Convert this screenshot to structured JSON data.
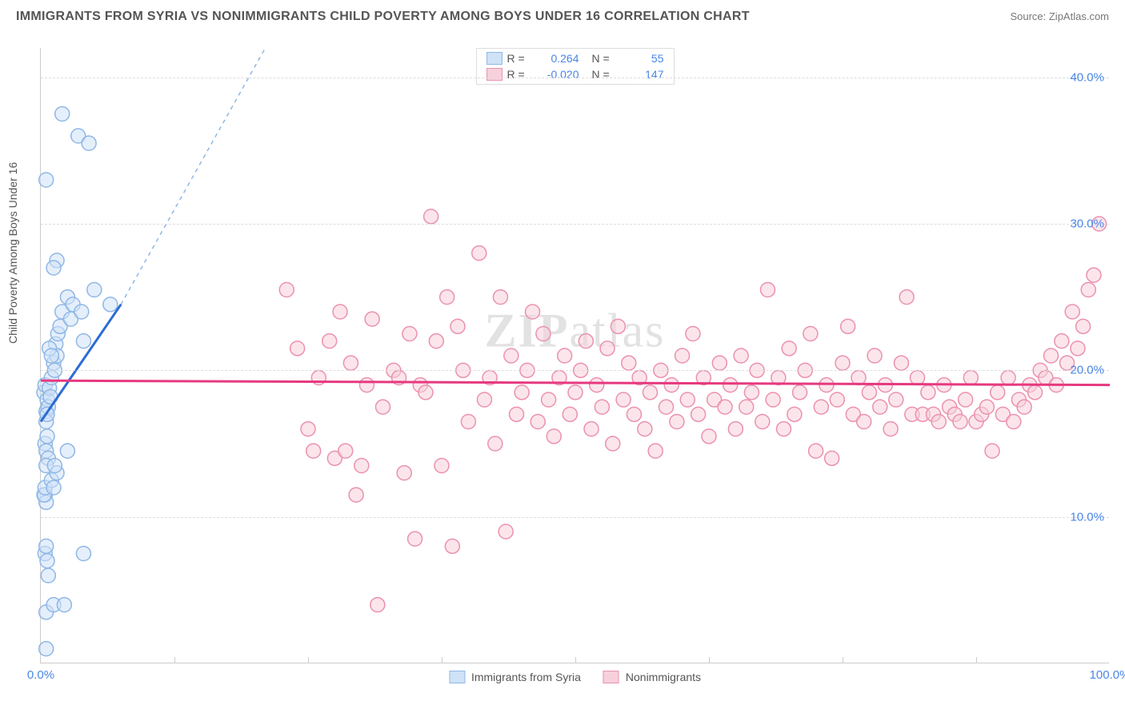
{
  "title": "IMMIGRANTS FROM SYRIA VS NONIMMIGRANTS CHILD POVERTY AMONG BOYS UNDER 16 CORRELATION CHART",
  "source_label": "Source: ZipAtlas.com",
  "ylabel": "Child Poverty Among Boys Under 16",
  "watermark": "ZIPatlas",
  "chart": {
    "type": "scatter",
    "xlim": [
      0,
      100
    ],
    "ylim": [
      0,
      42
    ],
    "x_ticks": [
      0,
      100
    ],
    "x_tick_labels": [
      "0.0%",
      "100.0%"
    ],
    "x_minor_ticks": [
      12.5,
      25,
      37.5,
      50,
      62.5,
      75,
      87.5
    ],
    "y_ticks": [
      10,
      20,
      30,
      40
    ],
    "y_tick_labels": [
      "10.0%",
      "20.0%",
      "30.0%",
      "40.0%"
    ],
    "background_color": "#ffffff",
    "grid_color": "#dddddd",
    "axis_color": "#cccccc",
    "marker_radius": 9,
    "marker_stroke_width": 1.5,
    "series": [
      {
        "name": "Immigrants from Syria",
        "fill": "#cfe2f7",
        "stroke": "#8fb7e6",
        "fill_opacity": 0.55,
        "R": "0.264",
        "N": "55",
        "trend": {
          "x1": 0,
          "y1": 16.5,
          "x2": 7.5,
          "y2": 24.5,
          "color": "#2b6cd4",
          "width": 3,
          "dash": "none"
        },
        "trend_ext": {
          "x1": 7.5,
          "y1": 24.5,
          "x2": 21,
          "y2": 42,
          "color": "#8fb7e6",
          "width": 1.5,
          "dash": "5,5"
        },
        "points": [
          [
            0.3,
            18.5
          ],
          [
            0.5,
            17.2
          ],
          [
            0.4,
            19.0
          ],
          [
            0.6,
            18.0
          ],
          [
            0.7,
            17.5
          ],
          [
            0.8,
            18.8
          ],
          [
            0.5,
            16.5
          ],
          [
            0.9,
            18.2
          ],
          [
            1.0,
            19.5
          ],
          [
            0.6,
            17.0
          ],
          [
            1.2,
            20.5
          ],
          [
            1.4,
            21.8
          ],
          [
            1.6,
            22.5
          ],
          [
            1.3,
            20.0
          ],
          [
            1.5,
            21.0
          ],
          [
            1.8,
            23.0
          ],
          [
            2.0,
            24.0
          ],
          [
            2.5,
            25.0
          ],
          [
            3.0,
            24.5
          ],
          [
            0.4,
            15.0
          ],
          [
            0.5,
            14.5
          ],
          [
            0.6,
            15.5
          ],
          [
            0.7,
            14.0
          ],
          [
            0.5,
            13.5
          ],
          [
            0.4,
            11.5
          ],
          [
            0.5,
            11.0
          ],
          [
            0.3,
            11.5
          ],
          [
            0.4,
            12.0
          ],
          [
            1.0,
            12.5
          ],
          [
            1.2,
            12.0
          ],
          [
            1.5,
            13.0
          ],
          [
            1.3,
            13.5
          ],
          [
            2.5,
            14.5
          ],
          [
            2.8,
            23.5
          ],
          [
            3.8,
            24.0
          ],
          [
            5.0,
            25.5
          ],
          [
            6.5,
            24.5
          ],
          [
            4.0,
            22.0
          ],
          [
            0.4,
            7.5
          ],
          [
            0.5,
            8.0
          ],
          [
            0.7,
            6.0
          ],
          [
            0.6,
            7.0
          ],
          [
            4.0,
            7.5
          ],
          [
            0.5,
            3.5
          ],
          [
            1.2,
            4.0
          ],
          [
            2.2,
            4.0
          ],
          [
            0.5,
            1.0
          ],
          [
            2.0,
            37.5
          ],
          [
            3.5,
            36.0
          ],
          [
            4.5,
            35.5
          ],
          [
            0.5,
            33.0
          ],
          [
            1.5,
            27.5
          ],
          [
            1.2,
            27.0
          ],
          [
            0.8,
            21.5
          ],
          [
            1.0,
            21.0
          ]
        ]
      },
      {
        "name": "Nonimmigrants",
        "fill": "#f8d0db",
        "stroke": "#eb91af",
        "fill_opacity": 0.55,
        "R": "-0.020",
        "N": "147",
        "trend": {
          "x1": 0,
          "y1": 19.3,
          "x2": 100,
          "y2": 19.0,
          "color": "#e6397f",
          "width": 3,
          "dash": "none"
        },
        "points": [
          [
            23,
            25.5
          ],
          [
            24,
            21.5
          ],
          [
            25,
            16.0
          ],
          [
            25.5,
            14.5
          ],
          [
            26,
            19.5
          ],
          [
            27,
            22.0
          ],
          [
            27.5,
            14.0
          ],
          [
            28,
            24.0
          ],
          [
            28.5,
            14.5
          ],
          [
            29,
            20.5
          ],
          [
            29.5,
            11.5
          ],
          [
            30,
            13.5
          ],
          [
            30.5,
            19.0
          ],
          [
            31,
            23.5
          ],
          [
            31.5,
            4.0
          ],
          [
            32,
            17.5
          ],
          [
            33,
            20.0
          ],
          [
            33.5,
            19.5
          ],
          [
            34,
            13.0
          ],
          [
            34.5,
            22.5
          ],
          [
            35,
            8.5
          ],
          [
            35.5,
            19.0
          ],
          [
            36,
            18.5
          ],
          [
            36.5,
            30.5
          ],
          [
            37,
            22.0
          ],
          [
            37.5,
            13.5
          ],
          [
            38,
            25.0
          ],
          [
            38.5,
            8.0
          ],
          [
            39,
            23.0
          ],
          [
            39.5,
            20.0
          ],
          [
            40,
            16.5
          ],
          [
            41,
            28.0
          ],
          [
            41.5,
            18.0
          ],
          [
            42,
            19.5
          ],
          [
            42.5,
            15.0
          ],
          [
            43,
            25.0
          ],
          [
            43.5,
            9.0
          ],
          [
            44,
            21.0
          ],
          [
            44.5,
            17.0
          ],
          [
            45,
            18.5
          ],
          [
            45.5,
            20.0
          ],
          [
            46,
            24.0
          ],
          [
            46.5,
            16.5
          ],
          [
            47,
            22.5
          ],
          [
            47.5,
            18.0
          ],
          [
            48,
            15.5
          ],
          [
            48.5,
            19.5
          ],
          [
            49,
            21.0
          ],
          [
            49.5,
            17.0
          ],
          [
            50,
            18.5
          ],
          [
            50.5,
            20.0
          ],
          [
            51,
            22.0
          ],
          [
            51.5,
            16.0
          ],
          [
            52,
            19.0
          ],
          [
            52.5,
            17.5
          ],
          [
            53,
            21.5
          ],
          [
            53.5,
            15.0
          ],
          [
            54,
            23.0
          ],
          [
            54.5,
            18.0
          ],
          [
            55,
            20.5
          ],
          [
            55.5,
            17.0
          ],
          [
            56,
            19.5
          ],
          [
            56.5,
            16.0
          ],
          [
            57,
            18.5
          ],
          [
            57.5,
            14.5
          ],
          [
            58,
            20.0
          ],
          [
            58.5,
            17.5
          ],
          [
            59,
            19.0
          ],
          [
            59.5,
            16.5
          ],
          [
            60,
            21.0
          ],
          [
            60.5,
            18.0
          ],
          [
            61,
            22.5
          ],
          [
            61.5,
            17.0
          ],
          [
            62,
            19.5
          ],
          [
            62.5,
            15.5
          ],
          [
            63,
            18.0
          ],
          [
            63.5,
            20.5
          ],
          [
            64,
            17.5
          ],
          [
            64.5,
            19.0
          ],
          [
            65,
            16.0
          ],
          [
            65.5,
            21.0
          ],
          [
            66,
            17.5
          ],
          [
            66.5,
            18.5
          ],
          [
            67,
            20.0
          ],
          [
            67.5,
            16.5
          ],
          [
            68,
            25.5
          ],
          [
            68.5,
            18.0
          ],
          [
            69,
            19.5
          ],
          [
            69.5,
            16.0
          ],
          [
            70,
            21.5
          ],
          [
            70.5,
            17.0
          ],
          [
            71,
            18.5
          ],
          [
            71.5,
            20.0
          ],
          [
            72,
            22.5
          ],
          [
            72.5,
            14.5
          ],
          [
            73,
            17.5
          ],
          [
            73.5,
            19.0
          ],
          [
            74,
            14.0
          ],
          [
            74.5,
            18.0
          ],
          [
            75,
            20.5
          ],
          [
            75.5,
            23.0
          ],
          [
            76,
            17.0
          ],
          [
            76.5,
            19.5
          ],
          [
            77,
            16.5
          ],
          [
            77.5,
            18.5
          ],
          [
            78,
            21.0
          ],
          [
            78.5,
            17.5
          ],
          [
            79,
            19.0
          ],
          [
            79.5,
            16.0
          ],
          [
            80,
            18.0
          ],
          [
            80.5,
            20.5
          ],
          [
            81,
            25.0
          ],
          [
            81.5,
            17.0
          ],
          [
            82,
            19.5
          ],
          [
            82.5,
            17.0
          ],
          [
            83,
            18.5
          ],
          [
            83.5,
            17.0
          ],
          [
            84,
            16.5
          ],
          [
            84.5,
            19.0
          ],
          [
            85,
            17.5
          ],
          [
            85.5,
            17.0
          ],
          [
            86,
            16.5
          ],
          [
            86.5,
            18.0
          ],
          [
            87,
            19.5
          ],
          [
            87.5,
            16.5
          ],
          [
            88,
            17.0
          ],
          [
            88.5,
            17.5
          ],
          [
            89,
            14.5
          ],
          [
            89.5,
            18.5
          ],
          [
            90,
            17.0
          ],
          [
            90.5,
            19.5
          ],
          [
            91,
            16.5
          ],
          [
            91.5,
            18.0
          ],
          [
            92,
            17.5
          ],
          [
            92.5,
            19.0
          ],
          [
            93,
            18.5
          ],
          [
            93.5,
            20.0
          ],
          [
            94,
            19.5
          ],
          [
            94.5,
            21.0
          ],
          [
            95,
            19.0
          ],
          [
            95.5,
            22.0
          ],
          [
            96,
            20.5
          ],
          [
            96.5,
            24.0
          ],
          [
            97,
            21.5
          ],
          [
            97.5,
            23.0
          ],
          [
            98,
            25.5
          ],
          [
            98.5,
            26.5
          ],
          [
            99,
            30.0
          ]
        ]
      }
    ],
    "legend_bottom": [
      {
        "label": "Immigrants from Syria",
        "fill": "#cfe2f7",
        "stroke": "#8fb7e6"
      },
      {
        "label": "Nonimmigrants",
        "fill": "#f8d0db",
        "stroke": "#eb91af"
      }
    ]
  }
}
